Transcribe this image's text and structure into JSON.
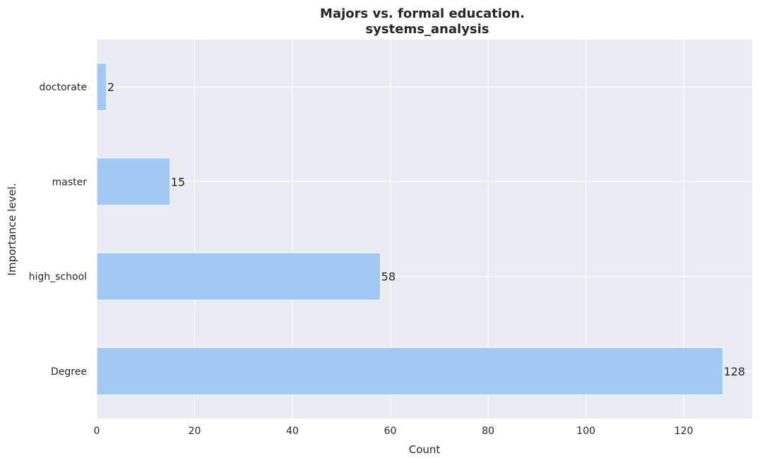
{
  "chart_data": {
    "type": "bar",
    "orientation": "horizontal",
    "title_line1": "Majors vs. formal education.",
    "title_line2": "systems_analysis",
    "xlabel": "Count",
    "ylabel": "Importance level.",
    "categories": [
      "doctorate",
      "master",
      "high_school",
      "Degree"
    ],
    "values": [
      2,
      15,
      58,
      128
    ],
    "xlim": [
      0,
      134
    ],
    "xticks": [
      0,
      20,
      40,
      60,
      80,
      100,
      120
    ],
    "grid": true,
    "colors": {
      "bar": "#a1c9f4",
      "background": "#eaeaf2",
      "grid": "#ffffff",
      "text": "#262626"
    }
  }
}
